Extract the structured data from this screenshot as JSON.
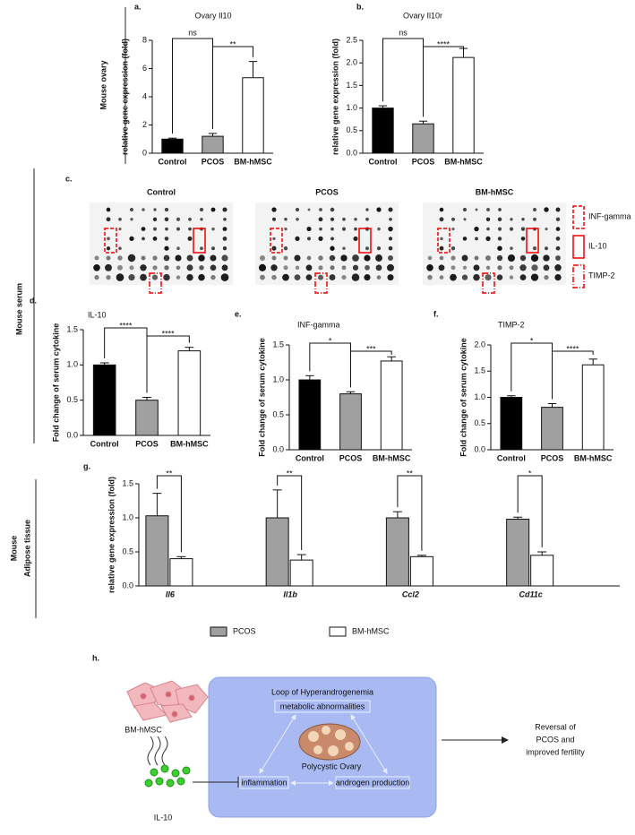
{
  "chart_data": [
    {
      "type": "bar",
      "panel": "a.",
      "title": "Ovary Il10",
      "ylabel": "relative gene expression (fold)",
      "categories": [
        "Control",
        "PCOS",
        "BM-hMSC"
      ],
      "values": [
        1.0,
        1.2,
        5.35
      ],
      "errors": [
        0.07,
        0.2,
        1.15
      ],
      "colors": [
        "#000000",
        "#a0a0a0",
        "#ffffff"
      ],
      "ylim": [
        0,
        8
      ],
      "yticks": [
        0,
        2,
        4,
        6,
        8
      ],
      "significance": [
        "ns",
        "**"
      ]
    },
    {
      "type": "bar",
      "panel": "b.",
      "title": "Ovary Il10r",
      "ylabel": "relative gene expression (fold)",
      "categories": [
        "Control",
        "PCOS",
        "BM-hMSC"
      ],
      "values": [
        1.0,
        0.65,
        2.12
      ],
      "errors": [
        0.05,
        0.06,
        0.2
      ],
      "colors": [
        "#000000",
        "#a0a0a0",
        "#ffffff"
      ],
      "ylim": [
        0,
        2.5
      ],
      "yticks": [
        {
          "value": 0,
          "label": "0.0"
        },
        0.5,
        {
          "value": 1,
          "label": "1.0"
        },
        1.5,
        {
          "value": 2,
          "label": "2.0"
        },
        2.5
      ],
      "significance": [
        "ns",
        "****"
      ]
    },
    {
      "type": "bar",
      "panel": "d.",
      "title": "IL-10",
      "ylabel": "Fold change of serum cytokine",
      "categories": [
        "Control",
        "PCOS",
        "BM-hMSC"
      ],
      "values": [
        1.0,
        0.5,
        1.2
      ],
      "errors": [
        0.03,
        0.04,
        0.05
      ],
      "colors": [
        "#000000",
        "#a0a0a0",
        "#ffffff"
      ],
      "ylim": [
        0,
        1.5
      ],
      "yticks": [
        {
          "value": 0,
          "label": "0.0"
        },
        0.5,
        {
          "value": 1,
          "label": "1.0"
        },
        1.5
      ],
      "significance": [
        "****",
        "****"
      ]
    },
    {
      "type": "bar",
      "panel": "e.",
      "title": "INF-gamma",
      "ylabel": "Fold change of serum cytokine",
      "categories": [
        "Control",
        "PCOS",
        "BM-hMSC"
      ],
      "values": [
        1.0,
        0.8,
        1.27
      ],
      "errors": [
        0.06,
        0.03,
        0.06
      ],
      "colors": [
        "#000000",
        "#a0a0a0",
        "#ffffff"
      ],
      "ylim": [
        0,
        1.5
      ],
      "yticks": [
        {
          "value": 0,
          "label": "0.0"
        },
        0.5,
        {
          "value": 1,
          "label": "1.0"
        },
        1.5
      ],
      "significance": [
        "*",
        "***"
      ]
    },
    {
      "type": "bar",
      "panel": "f.",
      "title": "TIMP-2",
      "ylabel": "Fold change of serum cytokine",
      "categories": [
        "Control",
        "PCOS",
        "BM-hMSC"
      ],
      "values": [
        1.0,
        0.81,
        1.62
      ],
      "errors": [
        0.03,
        0.07,
        0.11
      ],
      "colors": [
        "#000000",
        "#a0a0a0",
        "#ffffff"
      ],
      "ylim": [
        0,
        2
      ],
      "yticks": [
        {
          "value": 0,
          "label": "0.0"
        },
        0.5,
        {
          "value": 1,
          "label": "1.0"
        },
        1.5,
        {
          "value": 2,
          "label": "2.0"
        }
      ],
      "significance": [
        "*",
        "****"
      ]
    },
    {
      "type": "grouped_bar",
      "panel": "g.",
      "ylabel": "relative gene expression (fold)",
      "categories": [
        "Il6",
        "Il1b",
        "Ccl2",
        "Cd11c"
      ],
      "series": [
        {
          "name": "PCOS",
          "color": "#a0a0a0",
          "values": [
            1.03,
            1.0,
            1.0,
            0.98
          ],
          "errors": [
            0.33,
            0.41,
            0.09,
            0.03
          ]
        },
        {
          "name": "BM-hMSC",
          "color": "#ffffff",
          "values": [
            0.4,
            0.38,
            0.43,
            0.45
          ],
          "errors": [
            0.03,
            0.08,
            0.02,
            0.05
          ]
        }
      ],
      "ylim": [
        0,
        1.5
      ],
      "yticks": [
        {
          "value": 0,
          "label": "0.0"
        },
        0.5,
        {
          "value": 1,
          "label": "1.0"
        },
        1.5
      ],
      "significance": [
        "**",
        "**",
        "**",
        "*"
      ],
      "legend": "bottom"
    }
  ],
  "sections": [
    [
      "Mouse ovary"
    ],
    [
      "Mouse serum"
    ],
    [
      "Mouse",
      "Adipose tissue"
    ]
  ],
  "blots": {
    "panel": "c.",
    "titles": [
      "Control",
      "PCOS",
      "BM-hMSC"
    ],
    "legend": [
      "INF-gamma",
      "IL-10",
      "TIMP-2"
    ]
  },
  "diagram": {
    "panel": "h.",
    "cell_label": "BM-hMSC",
    "cytokine_label": "IL-10",
    "loop_title": "Loop of Hyperandrogenemia",
    "nodes": [
      "metabolic abnormalities",
      "inflammation",
      "androgen production"
    ],
    "center": "Polycystic Ovary",
    "outcome": [
      "Reversal of",
      "PCOS and",
      "improved fertility"
    ]
  }
}
